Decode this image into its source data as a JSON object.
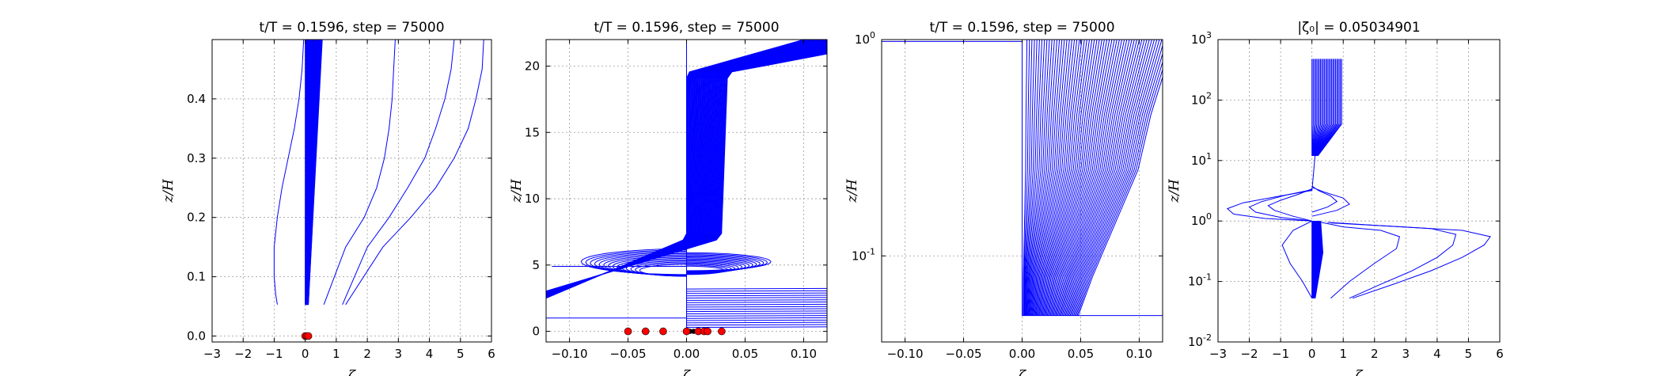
{
  "chart_data": [
    {
      "type": "line",
      "title": "t/T = 0.1596, step = 75000",
      "xlabel": "ζ",
      "ylabel": "z/H",
      "xlim": [
        -3,
        6
      ],
      "ylim": [
        -0.01,
        0.5
      ],
      "xticks": [
        "−3",
        "−2",
        "−1",
        "0",
        "1",
        "2",
        "3",
        "4",
        "5",
        "6"
      ],
      "yticks": [
        "0.0",
        "0.1",
        "0.2",
        "0.3",
        "0.4"
      ],
      "grid": true,
      "series": [
        {
          "x": [
            -0.05,
            -0.1,
            -0.2,
            -0.35,
            -0.55,
            -0.75,
            -0.9,
            -1.0,
            -1.0,
            -0.95,
            -0.9
          ],
          "y": [
            0.5,
            0.45,
            0.4,
            0.35,
            0.3,
            0.25,
            0.2,
            0.15,
            0.1,
            0.07,
            0.053
          ]
        },
        {
          "x": [
            2.9,
            2.85,
            2.8,
            2.7,
            2.55,
            2.3,
            1.9,
            1.3,
            0.6
          ],
          "y": [
            0.5,
            0.45,
            0.4,
            0.35,
            0.3,
            0.25,
            0.2,
            0.15,
            0.053
          ]
        },
        {
          "x": [
            4.8,
            4.7,
            4.5,
            4.2,
            3.85,
            3.3,
            2.7,
            2.0,
            1.2
          ],
          "y": [
            0.5,
            0.45,
            0.4,
            0.35,
            0.3,
            0.25,
            0.2,
            0.15,
            0.053
          ]
        },
        {
          "x": [
            5.75,
            5.7,
            5.5,
            5.25,
            4.8,
            4.2,
            3.4,
            2.5,
            1.3
          ],
          "y": [
            0.5,
            0.45,
            0.4,
            0.35,
            0.3,
            0.25,
            0.2,
            0.15,
            0.053
          ]
        }
      ],
      "band": {
        "x_left_top": 0.0,
        "x_right_top": 0.55,
        "x_left_bottom": 0.0,
        "x_right_bottom": 0.1,
        "y_top": 0.5,
        "y_bottom": 0.053
      },
      "markers_red": [
        [
          0.0,
          0.0
        ],
        [
          0.05,
          0.0
        ],
        [
          0.1,
          0.0
        ]
      ]
    },
    {
      "type": "line",
      "title": "t/T = 0.1596, step = 75000",
      "xlabel": "ζ",
      "ylabel": "z/H",
      "xlim": [
        -0.12,
        0.12
      ],
      "ylim": [
        -0.8,
        22
      ],
      "xticks": [
        "−0.10",
        "−0.05",
        "0.00",
        "0.05",
        "0.10"
      ],
      "yticks": [
        "0",
        "5",
        "10",
        "15",
        "20"
      ],
      "grid": true,
      "markers_red": [
        [
          -0.05,
          0
        ],
        [
          -0.035,
          0
        ],
        [
          -0.02,
          0
        ],
        [
          0.0,
          0
        ],
        [
          0.01,
          0
        ],
        [
          0.015,
          0
        ],
        [
          0.018,
          0
        ],
        [
          0.03,
          0
        ]
      ],
      "markers_black": [
        [
          0.003,
          0
        ],
        [
          0.006,
          0
        ],
        [
          0.009,
          0
        ]
      ]
    },
    {
      "type": "line",
      "title": "t/T = 0.1596, step = 75000",
      "xlabel": "ζ",
      "ylabel": "z/H",
      "xlim": [
        -0.12,
        0.12
      ],
      "ylim": [
        0.04,
        1.0
      ],
      "yscale": "log",
      "xticks": [
        "−0.10",
        "−0.05",
        "0.00",
        "0.05",
        "0.10"
      ],
      "yticks": [
        {
          "base": "10",
          "exp": "-1",
          "value": 0.1
        },
        {
          "base": "10",
          "exp": "0",
          "value": 1
        }
      ],
      "grid": true
    },
    {
      "type": "line",
      "title": "|ζ₀| = 0.05034901",
      "xlabel": "ζ",
      "ylabel": "z/H",
      "xlim": [
        -3,
        6
      ],
      "ylim": [
        0.01,
        1000
      ],
      "yscale": "log",
      "xticks": [
        "−3",
        "−2",
        "−1",
        "0",
        "1",
        "2",
        "3",
        "4",
        "5",
        "6"
      ],
      "yticks": [
        {
          "base": "10",
          "exp": "-2",
          "value": 0.01
        },
        {
          "base": "10",
          "exp": "-1",
          "value": 0.1
        },
        {
          "base": "10",
          "exp": "0",
          "value": 1
        },
        {
          "base": "10",
          "exp": "1",
          "value": 10
        },
        {
          "base": "10",
          "exp": "2",
          "value": 100
        },
        {
          "base": "10",
          "exp": "3",
          "value": 1000
        }
      ],
      "grid": true,
      "series": [
        {
          "x": [
            0.0,
            -0.3,
            -0.7,
            -0.95,
            -0.6,
            0.0
          ],
          "y": [
            0.053,
            0.1,
            0.2,
            0.4,
            0.7,
            1.0
          ]
        },
        {
          "x": [
            0.6,
            1.2,
            2.0,
            2.7,
            2.8,
            2.2,
            1.0,
            0.3
          ],
          "y": [
            0.053,
            0.1,
            0.2,
            0.35,
            0.55,
            0.7,
            0.8,
            0.95
          ]
        },
        {
          "x": [
            1.2,
            2.2,
            3.2,
            4.0,
            4.5,
            4.6,
            3.8,
            2.0,
            0.5
          ],
          "y": [
            0.053,
            0.09,
            0.15,
            0.25,
            0.4,
            0.6,
            0.75,
            0.85,
            0.95
          ]
        },
        {
          "x": [
            1.3,
            2.6,
            3.8,
            4.8,
            5.5,
            5.7,
            4.8,
            2.5,
            0.6
          ],
          "y": [
            0.053,
            0.09,
            0.15,
            0.25,
            0.4,
            0.55,
            0.7,
            0.82,
            0.93
          ]
        },
        {
          "x": [
            0.0,
            -1.5,
            -2.5,
            -2.7,
            -2.2,
            -1.0,
            0.0
          ],
          "y": [
            1.0,
            1.1,
            1.3,
            1.6,
            2.0,
            2.6,
            3.2
          ]
        },
        {
          "x": [
            0.0,
            -1.0,
            -1.8,
            -2.0,
            -1.6,
            -0.8,
            0.0
          ],
          "y": [
            1.0,
            1.15,
            1.4,
            1.7,
            2.1,
            2.7,
            3.3
          ]
        },
        {
          "x": [
            0.0,
            -0.6,
            -1.2,
            -1.4,
            -1.0,
            -0.4,
            0.0
          ],
          "y": [
            1.0,
            1.2,
            1.5,
            1.8,
            2.2,
            2.8,
            3.4
          ]
        },
        {
          "x": [
            0.0,
            0.8,
            1.2,
            1.0,
            0.4,
            0.0
          ],
          "y": [
            1.2,
            1.5,
            1.9,
            2.4,
            3.0,
            3.6
          ]
        },
        {
          "x": [
            0.0,
            0.5,
            0.8,
            0.6,
            0.2,
            0.0
          ],
          "y": [
            1.4,
            1.7,
            2.1,
            2.6,
            3.2,
            3.8
          ]
        }
      ],
      "band": {
        "x_left": 0.0,
        "x_right": 0.35,
        "y_bottom": 0.053,
        "y_top": 1.0
      },
      "upper_band": {
        "x_left": 0.0,
        "x_right": 0.95,
        "y_bottom": 12,
        "y_top": 480
      }
    }
  ]
}
